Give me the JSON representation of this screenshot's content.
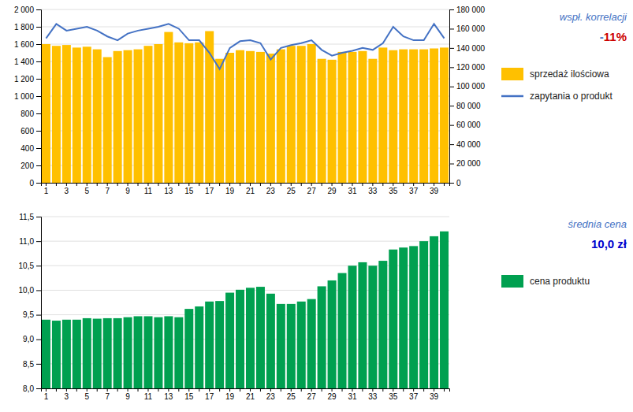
{
  "chart_data": [
    {
      "type": "bar",
      "categories": [
        "1",
        null,
        "3",
        null,
        "5",
        null,
        "7",
        null,
        "9",
        null,
        "11",
        null,
        "13",
        null,
        "15",
        null,
        "17",
        null,
        "19",
        null,
        "21",
        null,
        "23",
        null,
        "25",
        null,
        "27",
        null,
        "29",
        null,
        "31",
        null,
        "33",
        null,
        "35",
        null,
        "37",
        null,
        "39",
        null
      ],
      "series": [
        {
          "name": "sprzedaż ilościowa",
          "type": "bar",
          "color": "#FFC000",
          "values": [
            1600,
            1580,
            1590,
            1560,
            1570,
            1540,
            1450,
            1520,
            1530,
            1540,
            1580,
            1600,
            1740,
            1620,
            1610,
            1620,
            1750,
            1430,
            1500,
            1530,
            1520,
            1510,
            1490,
            1540,
            1580,
            1580,
            1600,
            1430,
            1420,
            1510,
            1510,
            1520,
            1430,
            1560,
            1530,
            1540,
            1540,
            1540,
            1550,
            1560
          ]
        },
        {
          "name": "zapytania o produkt",
          "type": "line",
          "color": "#4472C4",
          "axis": "y2",
          "values": [
            150000,
            165000,
            158000,
            160000,
            162000,
            158000,
            152000,
            148000,
            155000,
            158000,
            160000,
            162000,
            165000,
            160000,
            148000,
            148000,
            135000,
            118000,
            140000,
            147000,
            148000,
            145000,
            128000,
            140000,
            143000,
            145000,
            148000,
            138000,
            132000,
            135000,
            137000,
            140000,
            138000,
            145000,
            162000,
            152000,
            148000,
            148000,
            165000,
            150000
          ]
        }
      ],
      "ylim": [
        0,
        2000
      ],
      "yticks": [
        0,
        200,
        400,
        600,
        800,
        {
          "value": 1000,
          "label": "1 000"
        },
        {
          "value": 1200,
          "label": "1 200"
        },
        {
          "value": 1400,
          "label": "1 400"
        },
        {
          "value": 1600,
          "label": "1 600"
        },
        {
          "value": 1800,
          "label": "1 800"
        },
        {
          "value": 2000,
          "label": "2 000"
        }
      ],
      "y2lim": [
        0,
        180000
      ],
      "y2ticks": [
        0,
        {
          "value": 20000,
          "label": "20 000"
        },
        {
          "value": 40000,
          "label": "40 000"
        },
        {
          "value": 60000,
          "label": "60 000"
        },
        {
          "value": 80000,
          "label": "80 000"
        },
        {
          "value": 100000,
          "label": "100 000"
        },
        {
          "value": 120000,
          "label": "120 000"
        },
        {
          "value": 140000,
          "label": "140 000"
        },
        {
          "value": 160000,
          "label": "160 000"
        },
        {
          "value": 180000,
          "label": "180 000"
        }
      ],
      "grid": true,
      "legend": "right",
      "annotations": [
        "wspł. korrelacji",
        "-",
        "11%"
      ]
    },
    {
      "type": "bar",
      "categories": [
        "1",
        null,
        "3",
        null,
        "5",
        null,
        "7",
        null,
        "9",
        null,
        "11",
        null,
        "13",
        null,
        "15",
        null,
        "17",
        null,
        "19",
        null,
        "21",
        null,
        "23",
        null,
        "25",
        null,
        "27",
        null,
        "29",
        null,
        "31",
        null,
        "33",
        null,
        "35",
        null,
        "37",
        null,
        "39",
        null
      ],
      "series": [
        {
          "name": "cena produktu",
          "color": "#00A050",
          "values": [
            9.4,
            9.38,
            9.4,
            9.4,
            9.43,
            9.42,
            9.43,
            9.43,
            9.45,
            9.47,
            9.47,
            9.45,
            9.47,
            9.45,
            9.62,
            9.67,
            9.77,
            9.78,
            9.95,
            10.01,
            10.05,
            10.07,
            9.93,
            9.72,
            9.72,
            9.77,
            9.82,
            10.08,
            10.2,
            10.35,
            10.5,
            10.57,
            10.5,
            10.6,
            10.83,
            10.87,
            10.9,
            11.0,
            11.1,
            11.2
          ]
        }
      ],
      "ylim": [
        8.0,
        11.5
      ],
      "yticks": [
        {
          "value": 8.0,
          "label": "8,0"
        },
        {
          "value": 8.5,
          "label": "8,5"
        },
        {
          "value": 9.0,
          "label": "9,0"
        },
        {
          "value": 9.5,
          "label": "9,5"
        },
        {
          "value": 10.0,
          "label": "10,0"
        },
        {
          "value": 10.5,
          "label": "10,5"
        },
        {
          "value": 11.0,
          "label": "11,0"
        },
        {
          "value": 11.5,
          "label": "11,5"
        }
      ],
      "grid": true,
      "legend": "right",
      "annotations": [
        "średnia cena",
        "10,0 zł"
      ]
    }
  ]
}
